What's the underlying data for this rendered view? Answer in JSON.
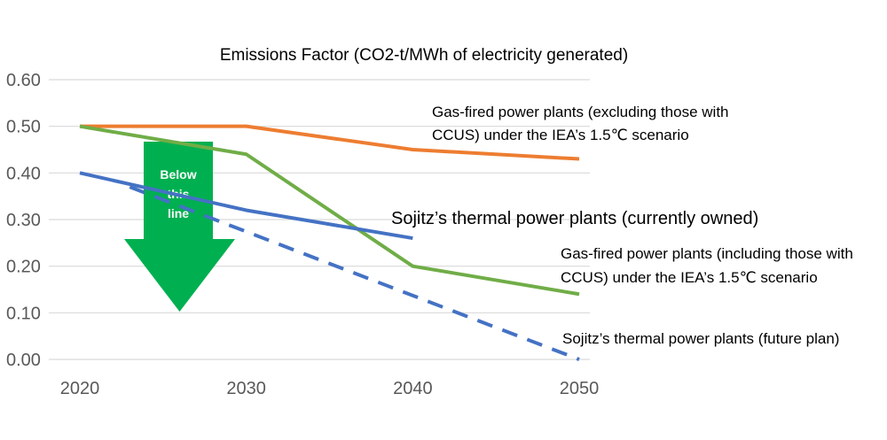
{
  "chart_data": {
    "type": "line",
    "title": "Emissions Factor (CO2-t/MWh of electricity generated)",
    "xlabel": "",
    "ylabel": "",
    "categories": [
      "2020",
      "2030",
      "2040",
      "2050"
    ],
    "ylim": [
      0,
      0.6
    ],
    "yticks": [
      "0.00",
      "0.10",
      "0.20",
      "0.30",
      "0.40",
      "0.50",
      "0.60"
    ],
    "grid": true,
    "legend": "none",
    "series": [
      {
        "label_lines": [
          "Gas-fired power plants (excluding those with",
          "CCUS) under the IEA’s 1.5℃ scenario"
        ],
        "color": "#ED7D31",
        "dash": false,
        "points": [
          [
            2020,
            0.5
          ],
          [
            2030,
            0.5
          ],
          [
            2040,
            0.45
          ],
          [
            2050,
            0.43
          ]
        ]
      },
      {
        "label_lines": [
          "Gas-fired power plants (including those with",
          "CCUS) under the IEA’s 1.5℃ scenario"
        ],
        "color": "#70AD47",
        "dash": false,
        "points": [
          [
            2020,
            0.5
          ],
          [
            2030,
            0.44
          ],
          [
            2040,
            0.2
          ],
          [
            2050,
            0.14
          ]
        ]
      },
      {
        "label_lines": [
          "Sojitz’s thermal power plants (currently owned)"
        ],
        "color": "#4472C4",
        "dash": false,
        "points": [
          [
            2020,
            0.4
          ],
          [
            2030,
            0.32
          ],
          [
            2040,
            0.26
          ]
        ]
      },
      {
        "label_lines": [
          "Sojitz’s thermal power plants (future plan)"
        ],
        "color": "#4472C4",
        "dash": true,
        "points": [
          [
            2023,
            0.37
          ],
          [
            2050,
            0.0
          ]
        ]
      }
    ],
    "annotation": {
      "lines": [
        "Below",
        "this",
        "line"
      ],
      "color": "#00B050"
    }
  }
}
